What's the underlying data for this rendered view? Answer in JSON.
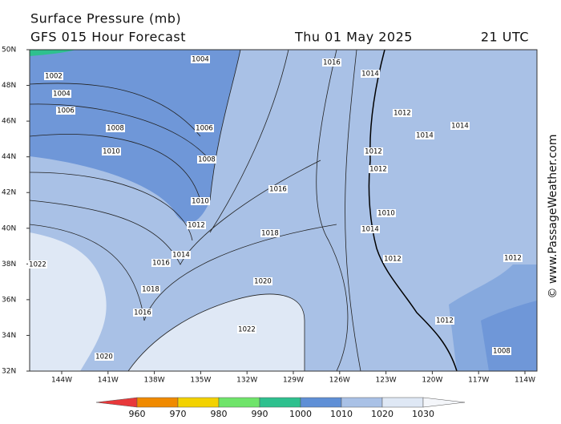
{
  "header": {
    "title": "Surface Pressure (mb)",
    "subtitle": "GFS 015 Hour Forecast",
    "date": "Thu 01 May 2025",
    "time": "21 UTC"
  },
  "map": {
    "lat_labels": [
      "50N",
      "48N",
      "46N",
      "44N",
      "42N",
      "40N",
      "38N",
      "36N",
      "34N",
      "32N"
    ],
    "lon_labels": [
      "144W",
      "141W",
      "138W",
      "135W",
      "132W",
      "129W",
      "126W",
      "123W",
      "120W",
      "117W",
      "114W"
    ],
    "isobar_labels": [
      1004,
      1002,
      1004,
      1006,
      1008,
      1006,
      1010,
      1008,
      1010,
      1012,
      1016,
      1018,
      1014,
      1016,
      1022,
      1018,
      1020,
      1016,
      1020,
      1022,
      1016,
      1014,
      1012,
      1012,
      1014,
      1014,
      1012,
      1010,
      1014,
      1012,
      1012,
      1008,
      1012
    ]
  },
  "colorbar": {
    "ticks": [
      960,
      970,
      980,
      990,
      1000,
      1010,
      1020,
      1030
    ],
    "colors": [
      "#e8383a",
      "#f08a00",
      "#f3d200",
      "#6fe46a",
      "#2ec08e",
      "#5f8fd6",
      "#a9c1e6",
      "#dfe8f5",
      "#f4f6fa"
    ]
  },
  "copyright": "© www.PassageWeather.com"
}
